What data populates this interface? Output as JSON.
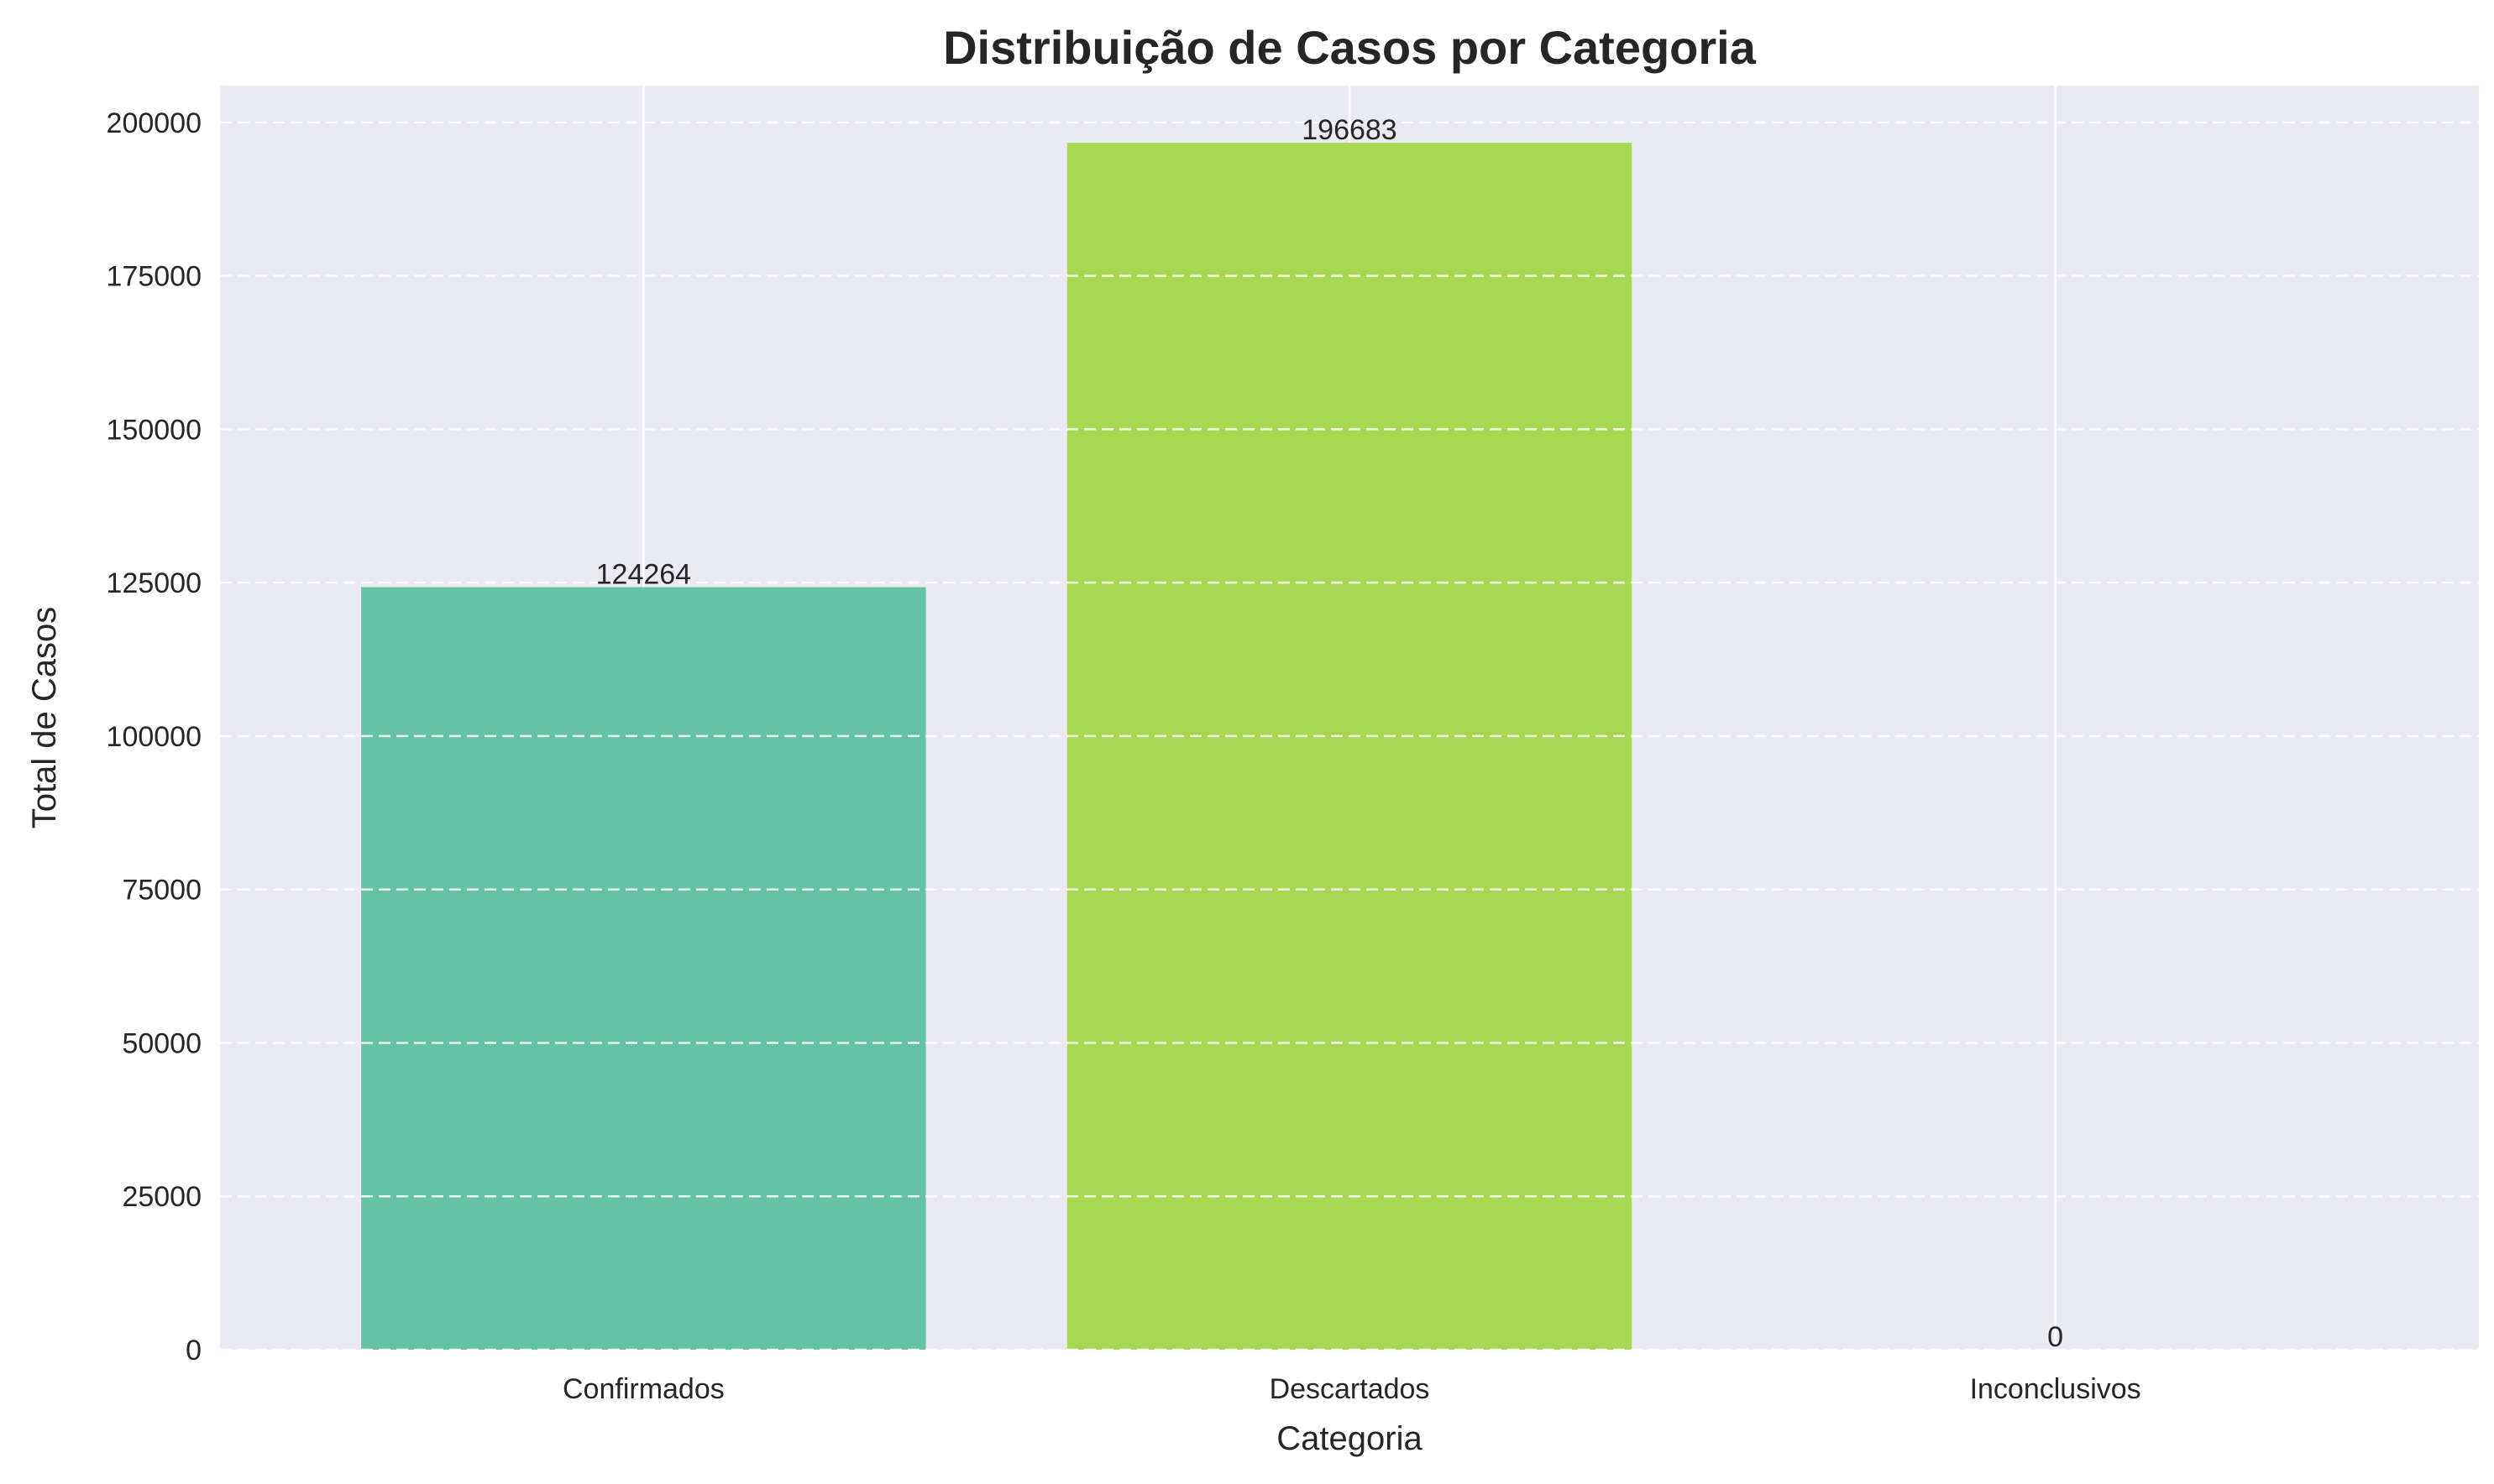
{
  "chart_data": {
    "type": "bar",
    "title": "Distribuição de Casos por Categoria",
    "xlabel": "Categoria",
    "ylabel": "Total de Casos",
    "categories": [
      "Confirmados",
      "Descartados",
      "Inconclusivos"
    ],
    "values": [
      124264,
      196683,
      0
    ],
    "data_labels": [
      "124264",
      "196683",
      "0"
    ],
    "colors": [
      "#66c2a5",
      "#a6d854",
      "#ffd92f"
    ],
    "ylim": [
      0,
      206000
    ],
    "yticks": [
      0,
      25000,
      50000,
      75000,
      100000,
      125000,
      150000,
      175000,
      200000
    ],
    "ytick_labels": [
      "0",
      "25000",
      "50000",
      "75000",
      "100000",
      "125000",
      "150000",
      "175000",
      "200000"
    ],
    "grid": true,
    "grid_style": "dashed-horizontal",
    "background_color": "#eaeaf2",
    "grid_color": "#ffffff"
  }
}
